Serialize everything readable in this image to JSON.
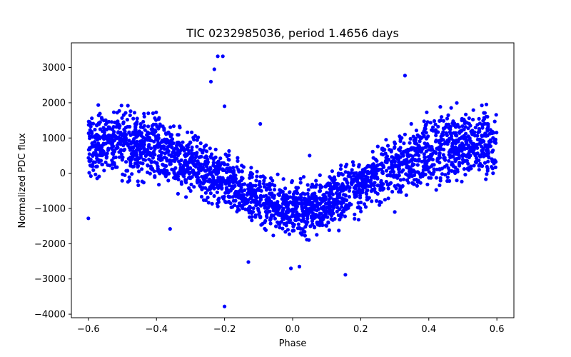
{
  "chart_data": {
    "type": "scatter",
    "title": "TIC 0232985036, period 1.4656 days",
    "xlabel": "Phase",
    "ylabel": "Normalized PDC flux",
    "xlim": [
      -0.65,
      0.65
    ],
    "ylim": [
      -4100,
      3700
    ],
    "xticks": [
      -0.6,
      -0.4,
      -0.2,
      0.0,
      0.2,
      0.4,
      0.6
    ],
    "xtick_labels": [
      "−0.6",
      "−0.4",
      "−0.2",
      "0.0",
      "0.2",
      "0.4",
      "0.6"
    ],
    "yticks": [
      -4000,
      -3000,
      -2000,
      -1000,
      0,
      1000,
      2000,
      3000
    ],
    "ytick_labels": [
      "−4000",
      "−3000",
      "−2000",
      "−1000",
      "0",
      "1000",
      "2000",
      "3000"
    ],
    "marker_color": "#0000ff",
    "series": [
      {
        "name": "flux",
        "trend": {
          "phase": [
            -0.6,
            -0.5,
            -0.4,
            -0.3,
            -0.2,
            -0.1,
            0.0,
            0.1,
            0.2,
            0.3,
            0.4,
            0.5,
            0.6
          ],
          "upper": [
            2000,
            2100,
            1900,
            1300,
            700,
            200,
            -200,
            100,
            600,
            1200,
            1900,
            2100,
            2000
          ],
          "lower": [
            -400,
            -400,
            -500,
            -800,
            -1200,
            -1700,
            -2000,
            -1800,
            -1300,
            -800,
            -500,
            -400,
            -400
          ]
        },
        "outliers": [
          {
            "x": -0.22,
            "y": 3320
          },
          {
            "x": -0.205,
            "y": 3320
          },
          {
            "x": -0.23,
            "y": 2950
          },
          {
            "x": -0.24,
            "y": 2600
          },
          {
            "x": 0.33,
            "y": 2770
          },
          {
            "x": -0.2,
            "y": -3780
          },
          {
            "x": 0.155,
            "y": -2880
          },
          {
            "x": 0.02,
            "y": -2650
          },
          {
            "x": -0.005,
            "y": -2700
          },
          {
            "x": -0.6,
            "y": -1280
          },
          {
            "x": -0.36,
            "y": -1580
          },
          {
            "x": -0.13,
            "y": -2520
          },
          {
            "x": 0.3,
            "y": -1100
          },
          {
            "x": 0.05,
            "y": 500
          },
          {
            "x": 0.33,
            "y": 1100
          },
          {
            "x": -0.095,
            "y": 1400
          },
          {
            "x": -0.2,
            "y": 1900
          }
        ]
      }
    ]
  }
}
